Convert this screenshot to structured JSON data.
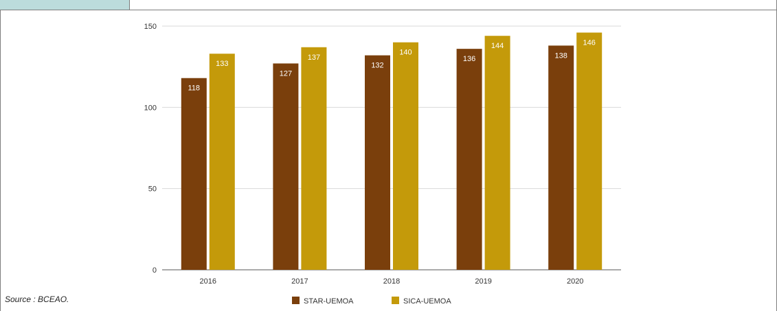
{
  "source_note": "Source : BCEAO.",
  "colors": {
    "star": "#7a3f0c",
    "sica": "#c49a0a",
    "grid": "#d9d9d9",
    "header_tab": "#bcdcdc"
  },
  "chart_data": {
    "type": "bar",
    "categories": [
      "2016",
      "2017",
      "2018",
      "2019",
      "2020"
    ],
    "series": [
      {
        "name": "STAR-UEMOA",
        "values": [
          118,
          127,
          132,
          136,
          138
        ]
      },
      {
        "name": "SICA-UEMOA",
        "values": [
          133,
          137,
          140,
          144,
          146
        ]
      }
    ],
    "yticks": [
      "0",
      "50",
      "100",
      "150"
    ],
    "ylim": [
      0,
      150
    ],
    "grid": true,
    "legend": "bottom-center",
    "data_labels": true
  }
}
